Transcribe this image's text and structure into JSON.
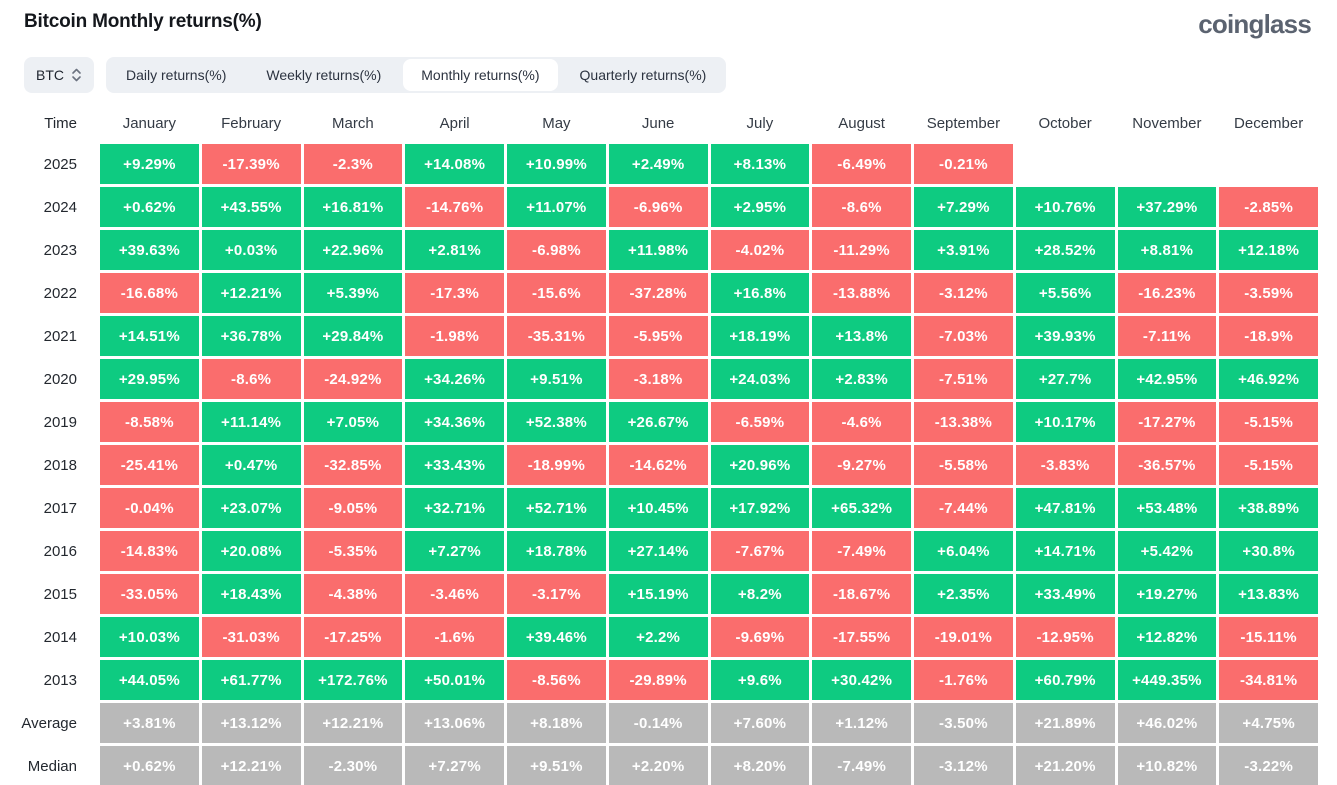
{
  "header": {
    "title": "Bitcoin Monthly returns(%)",
    "logo": "coinglass"
  },
  "controls": {
    "symbol_select": {
      "value": "BTC",
      "icon": "chevron-up-down-icon"
    },
    "tabs": [
      {
        "label": "Daily returns(%)",
        "active": false
      },
      {
        "label": "Weekly returns(%)",
        "active": false
      },
      {
        "label": "Monthly returns(%)",
        "active": true
      },
      {
        "label": "Quarterly returns(%)",
        "active": false
      }
    ]
  },
  "colors": {
    "positive": "#0ecb81",
    "negative": "#fa6d6d",
    "summary": "#b9b9b9"
  },
  "table": {
    "columns": [
      "Time",
      "January",
      "February",
      "March",
      "April",
      "May",
      "June",
      "July",
      "August",
      "September",
      "October",
      "November",
      "December"
    ],
    "rows": [
      {
        "label": "2025",
        "type": "data",
        "cells": [
          "+9.29%",
          "-17.39%",
          "-2.3%",
          "+14.08%",
          "+10.99%",
          "+2.49%",
          "+8.13%",
          "-6.49%",
          "-0.21%",
          "",
          "",
          ""
        ]
      },
      {
        "label": "2024",
        "type": "data",
        "cells": [
          "+0.62%",
          "+43.55%",
          "+16.81%",
          "-14.76%",
          "+11.07%",
          "-6.96%",
          "+2.95%",
          "-8.6%",
          "+7.29%",
          "+10.76%",
          "+37.29%",
          "-2.85%"
        ]
      },
      {
        "label": "2023",
        "type": "data",
        "cells": [
          "+39.63%",
          "+0.03%",
          "+22.96%",
          "+2.81%",
          "-6.98%",
          "+11.98%",
          "-4.02%",
          "-11.29%",
          "+3.91%",
          "+28.52%",
          "+8.81%",
          "+12.18%"
        ]
      },
      {
        "label": "2022",
        "type": "data",
        "cells": [
          "-16.68%",
          "+12.21%",
          "+5.39%",
          "-17.3%",
          "-15.6%",
          "-37.28%",
          "+16.8%",
          "-13.88%",
          "-3.12%",
          "+5.56%",
          "-16.23%",
          "-3.59%"
        ]
      },
      {
        "label": "2021",
        "type": "data",
        "cells": [
          "+14.51%",
          "+36.78%",
          "+29.84%",
          "-1.98%",
          "-35.31%",
          "-5.95%",
          "+18.19%",
          "+13.8%",
          "-7.03%",
          "+39.93%",
          "-7.11%",
          "-18.9%"
        ]
      },
      {
        "label": "2020",
        "type": "data",
        "cells": [
          "+29.95%",
          "-8.6%",
          "-24.92%",
          "+34.26%",
          "+9.51%",
          "-3.18%",
          "+24.03%",
          "+2.83%",
          "-7.51%",
          "+27.7%",
          "+42.95%",
          "+46.92%"
        ]
      },
      {
        "label": "2019",
        "type": "data",
        "cells": [
          "-8.58%",
          "+11.14%",
          "+7.05%",
          "+34.36%",
          "+52.38%",
          "+26.67%",
          "-6.59%",
          "-4.6%",
          "-13.38%",
          "+10.17%",
          "-17.27%",
          "-5.15%"
        ]
      },
      {
        "label": "2018",
        "type": "data",
        "cells": [
          "-25.41%",
          "+0.47%",
          "-32.85%",
          "+33.43%",
          "-18.99%",
          "-14.62%",
          "+20.96%",
          "-9.27%",
          "-5.58%",
          "-3.83%",
          "-36.57%",
          "-5.15%"
        ]
      },
      {
        "label": "2017",
        "type": "data",
        "cells": [
          "-0.04%",
          "+23.07%",
          "-9.05%",
          "+32.71%",
          "+52.71%",
          "+10.45%",
          "+17.92%",
          "+65.32%",
          "-7.44%",
          "+47.81%",
          "+53.48%",
          "+38.89%"
        ]
      },
      {
        "label": "2016",
        "type": "data",
        "cells": [
          "-14.83%",
          "+20.08%",
          "-5.35%",
          "+7.27%",
          "+18.78%",
          "+27.14%",
          "-7.67%",
          "-7.49%",
          "+6.04%",
          "+14.71%",
          "+5.42%",
          "+30.8%"
        ]
      },
      {
        "label": "2015",
        "type": "data",
        "cells": [
          "-33.05%",
          "+18.43%",
          "-4.38%",
          "-3.46%",
          "-3.17%",
          "+15.19%",
          "+8.2%",
          "-18.67%",
          "+2.35%",
          "+33.49%",
          "+19.27%",
          "+13.83%"
        ]
      },
      {
        "label": "2014",
        "type": "data",
        "cells": [
          "+10.03%",
          "-31.03%",
          "-17.25%",
          "-1.6%",
          "+39.46%",
          "+2.2%",
          "-9.69%",
          "-17.55%",
          "-19.01%",
          "-12.95%",
          "+12.82%",
          "-15.11%"
        ]
      },
      {
        "label": "2013",
        "type": "data",
        "cells": [
          "+44.05%",
          "+61.77%",
          "+172.76%",
          "+50.01%",
          "-8.56%",
          "-29.89%",
          "+9.6%",
          "+30.42%",
          "-1.76%",
          "+60.79%",
          "+449.35%",
          "-34.81%"
        ]
      },
      {
        "label": "Average",
        "type": "summary",
        "cells": [
          "+3.81%",
          "+13.12%",
          "+12.21%",
          "+13.06%",
          "+8.18%",
          "-0.14%",
          "+7.60%",
          "+1.12%",
          "-3.50%",
          "+21.89%",
          "+46.02%",
          "+4.75%"
        ]
      },
      {
        "label": "Median",
        "type": "summary",
        "cells": [
          "+0.62%",
          "+12.21%",
          "-2.30%",
          "+7.27%",
          "+9.51%",
          "+2.20%",
          "+8.20%",
          "-7.49%",
          "-3.12%",
          "+21.20%",
          "+10.82%",
          "-3.22%"
        ]
      }
    ]
  }
}
